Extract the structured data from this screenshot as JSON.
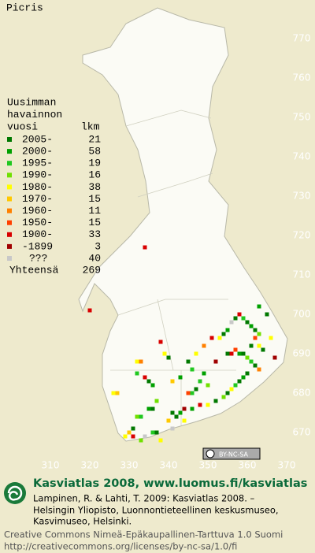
{
  "title": "Picris",
  "legend": {
    "title": [
      "Uusimman",
      "havainnon",
      "vuosi"
    ],
    "count_header": "lkm",
    "items": [
      {
        "label": "2005-",
        "count": 21,
        "color": "#007800"
      },
      {
        "label": "2000-",
        "count": 58,
        "color": "#00a000"
      },
      {
        "label": "1995-",
        "count": 19,
        "color": "#20c820"
      },
      {
        "label": "1990-",
        "count": 16,
        "color": "#70e000"
      },
      {
        "label": "1980-",
        "count": 38,
        "color": "#ffff00"
      },
      {
        "label": "1970-",
        "count": 15,
        "color": "#ffc800"
      },
      {
        "label": "1960-",
        "count": 11,
        "color": "#ff8000"
      },
      {
        "label": "1950-",
        "count": 15,
        "color": "#ff4000"
      },
      {
        "label": "1900-",
        "count": 33,
        "color": "#d80000"
      },
      {
        "label": "-1899",
        "count": 3,
        "color": "#a00000"
      },
      {
        "label": "???",
        "count": 40,
        "color": "#c8c8c8"
      }
    ],
    "total_label": "Yhteensä",
    "total": 269
  },
  "map": {
    "xticks": [
      310,
      320,
      330,
      340,
      350,
      360,
      370
    ],
    "yticks": [
      670,
      680,
      690,
      700,
      710,
      720,
      730,
      740,
      750,
      760,
      770
    ],
    "points": [
      [
        334,
        717,
        8
      ],
      [
        320,
        701,
        8
      ],
      [
        338,
        693,
        8
      ],
      [
        332,
        688,
        4
      ],
      [
        333,
        688,
        6
      ],
      [
        332,
        685,
        2
      ],
      [
        334,
        684,
        8
      ],
      [
        326,
        680,
        4
      ],
      [
        327,
        680,
        5
      ],
      [
        336,
        682,
        1
      ],
      [
        335,
        683,
        0
      ],
      [
        337,
        678,
        3
      ],
      [
        336,
        676,
        0
      ],
      [
        335,
        676,
        1
      ],
      [
        333,
        674,
        2
      ],
      [
        332,
        674,
        3
      ],
      [
        331,
        671,
        0
      ],
      [
        330,
        670,
        5
      ],
      [
        329,
        669,
        4
      ],
      [
        331,
        669,
        8
      ],
      [
        333,
        668,
        3
      ],
      [
        334,
        669,
        10
      ],
      [
        336,
        670,
        2
      ],
      [
        337,
        670,
        0
      ],
      [
        338,
        668,
        4
      ],
      [
        341,
        671,
        10
      ],
      [
        341,
        675,
        0
      ],
      [
        342,
        674,
        0
      ],
      [
        343,
        675,
        1
      ],
      [
        344,
        673,
        4
      ],
      [
        340,
        673,
        5
      ],
      [
        345,
        680,
        7
      ],
      [
        346,
        680,
        2
      ],
      [
        347,
        681,
        0
      ],
      [
        348,
        683,
        2
      ],
      [
        349,
        685,
        1
      ],
      [
        350,
        682,
        3
      ],
      [
        352,
        688,
        9
      ],
      [
        355,
        690,
        0
      ],
      [
        356,
        690,
        8
      ],
      [
        357,
        691,
        7
      ],
      [
        358,
        690,
        1
      ],
      [
        359,
        690,
        0
      ],
      [
        360,
        689,
        3
      ],
      [
        361,
        688,
        2
      ],
      [
        362,
        687,
        0
      ],
      [
        363,
        686,
        6
      ],
      [
        360,
        685,
        0
      ],
      [
        359,
        684,
        1
      ],
      [
        358,
        683,
        0
      ],
      [
        357,
        682,
        2
      ],
      [
        356,
        681,
        4
      ],
      [
        355,
        680,
        0
      ],
      [
        354,
        679,
        3
      ],
      [
        352,
        678,
        0
      ],
      [
        350,
        677,
        4
      ],
      [
        348,
        677,
        8
      ],
      [
        346,
        676,
        1
      ],
      [
        344,
        676,
        9
      ],
      [
        353,
        694,
        4
      ],
      [
        354,
        695,
        0
      ],
      [
        355,
        696,
        1
      ],
      [
        356,
        698,
        10
      ],
      [
        357,
        699,
        0
      ],
      [
        358,
        700,
        8
      ],
      [
        359,
        699,
        2
      ],
      [
        360,
        698,
        0
      ],
      [
        361,
        697,
        1
      ],
      [
        362,
        696,
        0
      ],
      [
        363,
        695,
        3
      ],
      [
        362,
        694,
        7
      ],
      [
        361,
        692,
        0
      ],
      [
        363,
        692,
        4
      ],
      [
        364,
        691,
        0
      ],
      [
        365,
        700,
        0
      ],
      [
        363,
        702,
        1
      ],
      [
        366,
        694,
        4
      ],
      [
        367,
        689,
        9
      ],
      [
        351,
        694,
        8
      ],
      [
        349,
        692,
        6
      ],
      [
        347,
        690,
        4
      ],
      [
        345,
        688,
        0
      ],
      [
        346,
        686,
        2
      ],
      [
        343,
        684,
        1
      ],
      [
        341,
        683,
        5
      ],
      [
        340,
        689,
        0
      ],
      [
        339,
        690,
        4
      ]
    ]
  },
  "badge": "BY-NC-SA",
  "footer": {
    "heading": "Kasviatlas 2008, www.luomus.fi/kasviatlas",
    "citation": [
      "Lampinen, R. & Lahti, T. 2009: Kasviatlas 2008. –",
      "Helsingin Yliopisto, Luonnontieteellinen keskusmuseo,",
      "Kasvimuseo, Helsinki."
    ],
    "license": [
      "Creative Commons Nimeä-Epäkaupallinen-Tarttuva 1.0 Suomi",
      "http://creativecommons.org/licenses/by-nc-sa/1.0/fi"
    ]
  }
}
